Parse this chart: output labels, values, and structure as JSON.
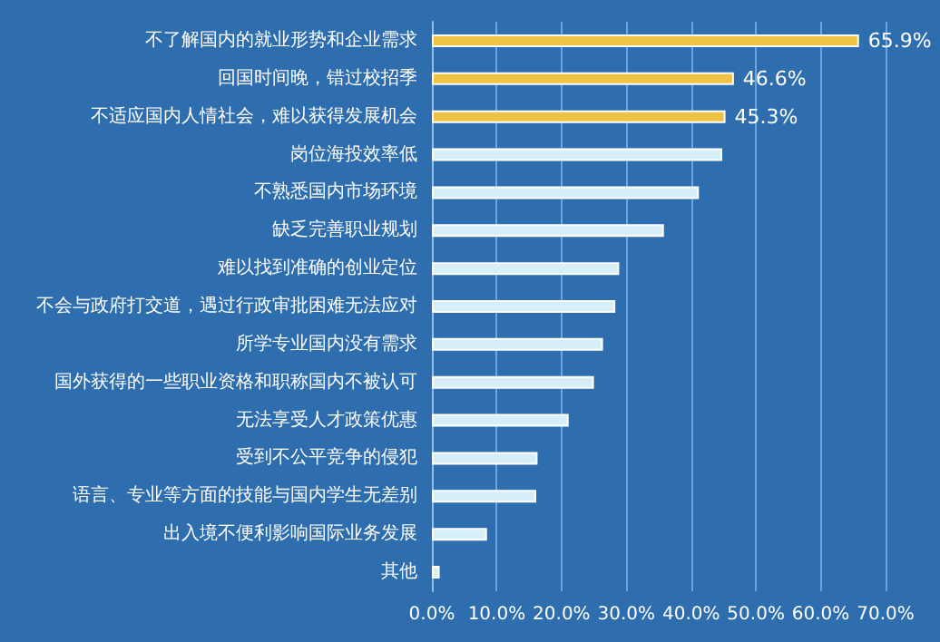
{
  "chart_data": {
    "type": "bar",
    "orientation": "horizontal",
    "categories": [
      "不了解国内的就业形势和企业需求",
      "回国时间晚，错过校招季",
      "不适应国内人情社会，难以获得发展机会",
      "岗位海投效率低",
      "不熟悉国内市场环境",
      "缺乏完善职业规划",
      "难以找到准确的创业定位",
      "不会与政府打交道，遇过行政审批困难无法应对",
      "所学专业国内没有需求",
      "国外获得的一些职业资格和职称国内不被认可",
      "无法享受人才政策优惠",
      "受到不公平竞争的侵犯",
      "语言、专业等方面的技能与国内学生无差别",
      "出入境不便利影响国际业务发展",
      "其他"
    ],
    "values": [
      65.9,
      46.6,
      45.3,
      44.8,
      41.2,
      35.8,
      28.9,
      28.3,
      26.4,
      25.0,
      21.1,
      16.3,
      16.1,
      8.5,
      1.2
    ],
    "colors": [
      "#eec243",
      "#eec243",
      "#eec243",
      "#d6eef8",
      "#d6eef8",
      "#d6eef8",
      "#d6eef8",
      "#d6eef8",
      "#d6eef8",
      "#d6eef8",
      "#d6eef8",
      "#d6eef8",
      "#d6eef8",
      "#d6eef8",
      "#d6eef8"
    ],
    "value_labels": [
      "65.9%",
      "46.6%",
      "45.3%",
      null,
      null,
      null,
      null,
      null,
      null,
      null,
      null,
      null,
      null,
      null,
      null
    ],
    "xlim": [
      0,
      70
    ],
    "xticks": [
      {
        "value": 0,
        "label": "0.0%"
      },
      {
        "value": 10,
        "label": "10.0%"
      },
      {
        "value": 20,
        "label": "20.0%"
      },
      {
        "value": 30,
        "label": "30.0%"
      },
      {
        "value": 40,
        "label": "40.0%"
      },
      {
        "value": 50,
        "label": "50.0%"
      },
      {
        "value": 60,
        "label": "60.0%"
      },
      {
        "value": 70,
        "label": "70.0%"
      }
    ],
    "grid": "x"
  }
}
